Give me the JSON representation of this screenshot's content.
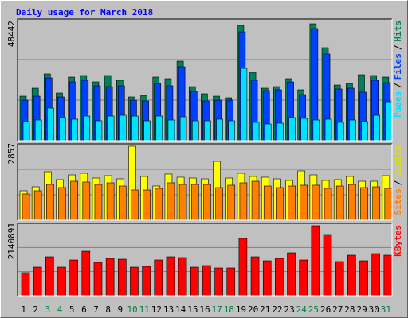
{
  "chart_data": [
    {
      "type": "bar",
      "title": "Daily usage for March 2018",
      "categories": [
        "1",
        "2",
        "3",
        "4",
        "5",
        "6",
        "7",
        "8",
        "9",
        "10",
        "11",
        "12",
        "13",
        "14",
        "15",
        "16",
        "17",
        "18",
        "19",
        "20",
        "21",
        "22",
        "23",
        "24",
        "25",
        "26",
        "27",
        "28",
        "29",
        "30",
        "31"
      ],
      "series": [
        {
          "name": "Hits",
          "color": "#00805c",
          "values": [
            18450,
            21750,
            27680,
            19770,
            26360,
            27020,
            24380,
            27020,
            25040,
            18120,
            18780,
            26360,
            25700,
            32950,
            22400,
            19440,
            18450,
            17790,
            47780,
            28340,
            21750,
            22400,
            25700,
            21090,
            48442,
            38550,
            23060,
            23720,
            27350,
            27020,
            26360
          ]
        },
        {
          "name": "Files",
          "color": "#0040ff",
          "values": [
            16800,
            18450,
            26030,
            18120,
            24380,
            25040,
            22740,
            22400,
            22740,
            16800,
            16480,
            23720,
            22740,
            30640,
            20430,
            16480,
            16800,
            16800,
            45140,
            25040,
            20760,
            21090,
            24380,
            19110,
            46460,
            35920,
            21420,
            21750,
            20100,
            25040,
            24050
          ]
        },
        {
          "name": "Pages",
          "color": "#00e0ff",
          "values": [
            7910,
            8570,
            13510,
            9560,
            8900,
            10210,
            8240,
            10210,
            10540,
            10210,
            8240,
            10210,
            8570,
            9890,
            8240,
            8240,
            8900,
            8240,
            29980,
            7580,
            6920,
            7250,
            9560,
            9230,
            8570,
            8900,
            7580,
            8570,
            7910,
            10540,
            16150
          ]
        }
      ],
      "legend_separator": "/",
      "ylim": [
        0,
        50420
      ],
      "yticks": [
        48442
      ]
    },
    {
      "type": "bar",
      "categories": [
        "1",
        "2",
        "3",
        "4",
        "5",
        "6",
        "7",
        "8",
        "9",
        "10",
        "11",
        "12",
        "13",
        "14",
        "15",
        "16",
        "17",
        "18",
        "19",
        "20",
        "21",
        "22",
        "23",
        "24",
        "25",
        "26",
        "27",
        "28",
        "29",
        "30",
        "31"
      ],
      "series": [
        {
          "name": "Visits",
          "color": "#ffff00",
          "values": [
            1137,
            1290,
            1874,
            1567,
            1751,
            1812,
            1628,
            1720,
            1597,
            2857,
            1690,
            1321,
            1782,
            1659,
            1628,
            1597,
            2273,
            1628,
            1812,
            1690,
            1659,
            1597,
            1536,
            1905,
            1751,
            1536,
            1567,
            1690,
            1505,
            1505,
            1720
          ]
        },
        {
          "name": "Sites",
          "color": "#ff8000",
          "values": [
            1014,
            1137,
            1382,
            1260,
            1505,
            1475,
            1382,
            1444,
            1321,
            1167,
            1167,
            1229,
            1444,
            1382,
            1382,
            1382,
            1260,
            1352,
            1444,
            1505,
            1321,
            1260,
            1321,
            1352,
            1352,
            1229,
            1321,
            1382,
            1260,
            1290,
            1229
          ]
        }
      ],
      "legend_separator": "/",
      "ylim": [
        0,
        2949
      ],
      "yticks": [
        2857
      ]
    },
    {
      "type": "bar",
      "categories": [
        "1",
        "2",
        "3",
        "4",
        "5",
        "6",
        "7",
        "8",
        "9",
        "10",
        "11",
        "12",
        "13",
        "14",
        "15",
        "16",
        "17",
        "18",
        "19",
        "20",
        "21",
        "22",
        "23",
        "24",
        "25",
        "26",
        "27",
        "28",
        "29",
        "30",
        "31"
      ],
      "highlight_categories": [
        "3",
        "4",
        "10",
        "11",
        "17",
        "18",
        "24",
        "25",
        "31"
      ],
      "highlight_color": "#008040",
      "series": [
        {
          "name": "KBytes",
          "color": "#ff0000",
          "values": [
            705500,
            875800,
            1192100,
            875800,
            1094800,
            1362400,
            1021800,
            1143400,
            1119100,
            875800,
            900100,
            1094800,
            1192100,
            1167700,
            875800,
            924500,
            851500,
            851500,
            1751600,
            1192100,
            1070400,
            1143400,
            1313700,
            1094800,
            2140891,
            1873300,
            1046100,
            1240700,
            1070400,
            1289400,
            1240700
          ]
        }
      ],
      "ylim": [
        0,
        2213875
      ],
      "yticks": [
        2140891
      ]
    }
  ]
}
